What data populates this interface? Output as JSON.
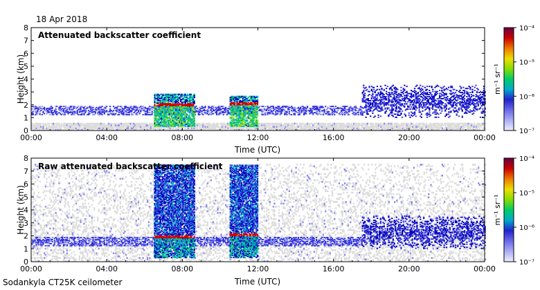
{
  "date_label": "18 Apr 2018",
  "footer": "Sodankyla CT25K ceilometer",
  "chart_data": [
    {
      "type": "heatmap",
      "title": "Attenuated backscatter coefficient",
      "xlabel": "Time (UTC)",
      "ylabel": "Height (km)",
      "xlim": [
        0,
        24
      ],
      "ylim": [
        0,
        8
      ],
      "x_ticks": [
        "00:00",
        "04:00",
        "08:00",
        "12:00",
        "16:00",
        "20:00",
        "00:00"
      ],
      "y_ticks": [
        "0",
        "1",
        "2",
        "3",
        "4",
        "5",
        "6",
        "7",
        "8"
      ],
      "colorbar": {
        "label": "m⁻¹ sr⁻¹",
        "scale": "log",
        "ticks": [
          "10⁻⁷",
          "10⁻⁶",
          "10⁻⁵",
          "10⁻⁴"
        ],
        "range": [
          1e-07,
          0.0001
        ]
      },
      "features": [
        {
          "type": "noise",
          "start": 0,
          "end": 24,
          "bottom": 0,
          "top": 0.5,
          "level": -7
        },
        {
          "type": "aerosol",
          "start": 0,
          "end": 17.5,
          "bottom": 1.2,
          "top": 1.9,
          "level": -6.5
        },
        {
          "type": "aerosol",
          "start": 17.5,
          "end": 24,
          "bottom": 1.0,
          "top": 3.5,
          "level": -6.2
        },
        {
          "type": "cloud",
          "start": 6.5,
          "end": 8.6,
          "bottom": 0.3,
          "top": 2.8,
          "base": 1.95,
          "level": -5.5
        },
        {
          "type": "cloud",
          "start": 10.5,
          "end": 12.0,
          "bottom": 0.3,
          "top": 2.7,
          "base": 2.05,
          "level": -5.5
        }
      ]
    },
    {
      "type": "heatmap",
      "title": "Raw attenuated backscatter coefficient",
      "xlabel": "Time (UTC)",
      "ylabel": "Height (km)",
      "xlim": [
        0,
        24
      ],
      "ylim": [
        0,
        8
      ],
      "x_ticks": [
        "00:00",
        "04:00",
        "08:00",
        "12:00",
        "16:00",
        "20:00",
        "00:00"
      ],
      "y_ticks": [
        "0",
        "1",
        "2",
        "3",
        "4",
        "5",
        "6",
        "7",
        "8"
      ],
      "colorbar": {
        "label": "m⁻¹ sr⁻¹",
        "scale": "log",
        "ticks": [
          "10⁻⁷",
          "10⁻⁶",
          "10⁻⁵",
          "10⁻⁴"
        ],
        "range": [
          1e-07,
          0.0001
        ]
      },
      "features": [
        {
          "type": "noise",
          "start": 0,
          "end": 24,
          "bottom": 0,
          "top": 7.5,
          "level": -7
        },
        {
          "type": "aerosol",
          "start": 0,
          "end": 17.5,
          "bottom": 1.2,
          "top": 1.9,
          "level": -6.5
        },
        {
          "type": "aerosol",
          "start": 17.5,
          "end": 24,
          "bottom": 1.0,
          "top": 3.5,
          "level": -6.2
        },
        {
          "type": "cloud",
          "start": 6.5,
          "end": 8.6,
          "bottom": 0.3,
          "top": 7.5,
          "base": 1.9,
          "level": -5.8
        },
        {
          "type": "cloud",
          "start": 10.5,
          "end": 12.0,
          "bottom": 0.3,
          "top": 7.5,
          "base": 2.05,
          "level": -5.8
        }
      ]
    }
  ]
}
